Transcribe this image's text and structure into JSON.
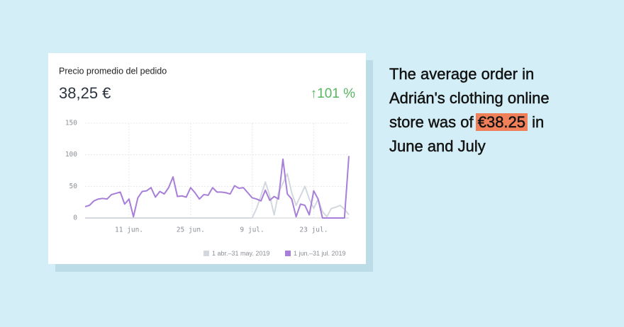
{
  "card": {
    "title": "Precio promedio del pedido",
    "value": "38,25 €",
    "change": "↑101 %"
  },
  "chart_data": {
    "type": "line",
    "categories": [
      null,
      null,
      null,
      null,
      null,
      null,
      null,
      null,
      null,
      null,
      "11 jun.",
      null,
      null,
      null,
      null,
      null,
      null,
      null,
      null,
      null,
      null,
      null,
      null,
      null,
      "25 jun.",
      null,
      null,
      null,
      null,
      null,
      null,
      null,
      null,
      null,
      null,
      null,
      null,
      null,
      "9 jul.",
      null,
      null,
      null,
      null,
      null,
      null,
      null,
      null,
      null,
      null,
      null,
      null,
      null,
      "23 jul.",
      null,
      null,
      null,
      null,
      null,
      null,
      null,
      null
    ],
    "series": [
      {
        "name": "1 abr.–31 may. 2019",
        "color": "#d3d8de",
        "values": [
          0,
          0,
          0,
          0,
          0,
          0,
          0,
          0,
          0,
          0,
          0,
          0,
          0,
          0,
          0,
          0,
          0,
          0,
          0,
          0,
          0,
          0,
          0,
          0,
          0,
          0,
          0,
          0,
          0,
          0,
          0,
          0,
          0,
          0,
          0,
          0,
          0,
          0,
          0,
          15,
          35,
          57,
          35,
          5,
          40,
          55,
          70,
          40,
          20,
          35,
          50,
          30,
          15,
          30,
          10,
          2,
          15,
          17,
          20,
          14,
          5
        ]
      },
      {
        "name": "1 jun.–31 jul. 2019",
        "color": "#a77fd8",
        "values": [
          18,
          20,
          27,
          30,
          31,
          30,
          37,
          39,
          41,
          22,
          30,
          2,
          32,
          42,
          43,
          48,
          33,
          42,
          38,
          48,
          65,
          34,
          35,
          33,
          48,
          40,
          30,
          37,
          36,
          48,
          41,
          41,
          40,
          38,
          51,
          47,
          48,
          40,
          32,
          30,
          27,
          44,
          28,
          34,
          30,
          93,
          38,
          30,
          2,
          22,
          20,
          5,
          43,
          30,
          0,
          0,
          0,
          0,
          0,
          0,
          98
        ]
      }
    ],
    "ylim": [
      0,
      150
    ],
    "yticks": [
      0,
      50,
      100,
      150
    ],
    "grid": true
  },
  "caption": {
    "line1": "The average order in",
    "line2": "Adrián's clothing online",
    "line3_start": "store was of ",
    "highlight": "€38.25",
    "line3_end": " in",
    "line4": "June and July"
  }
}
